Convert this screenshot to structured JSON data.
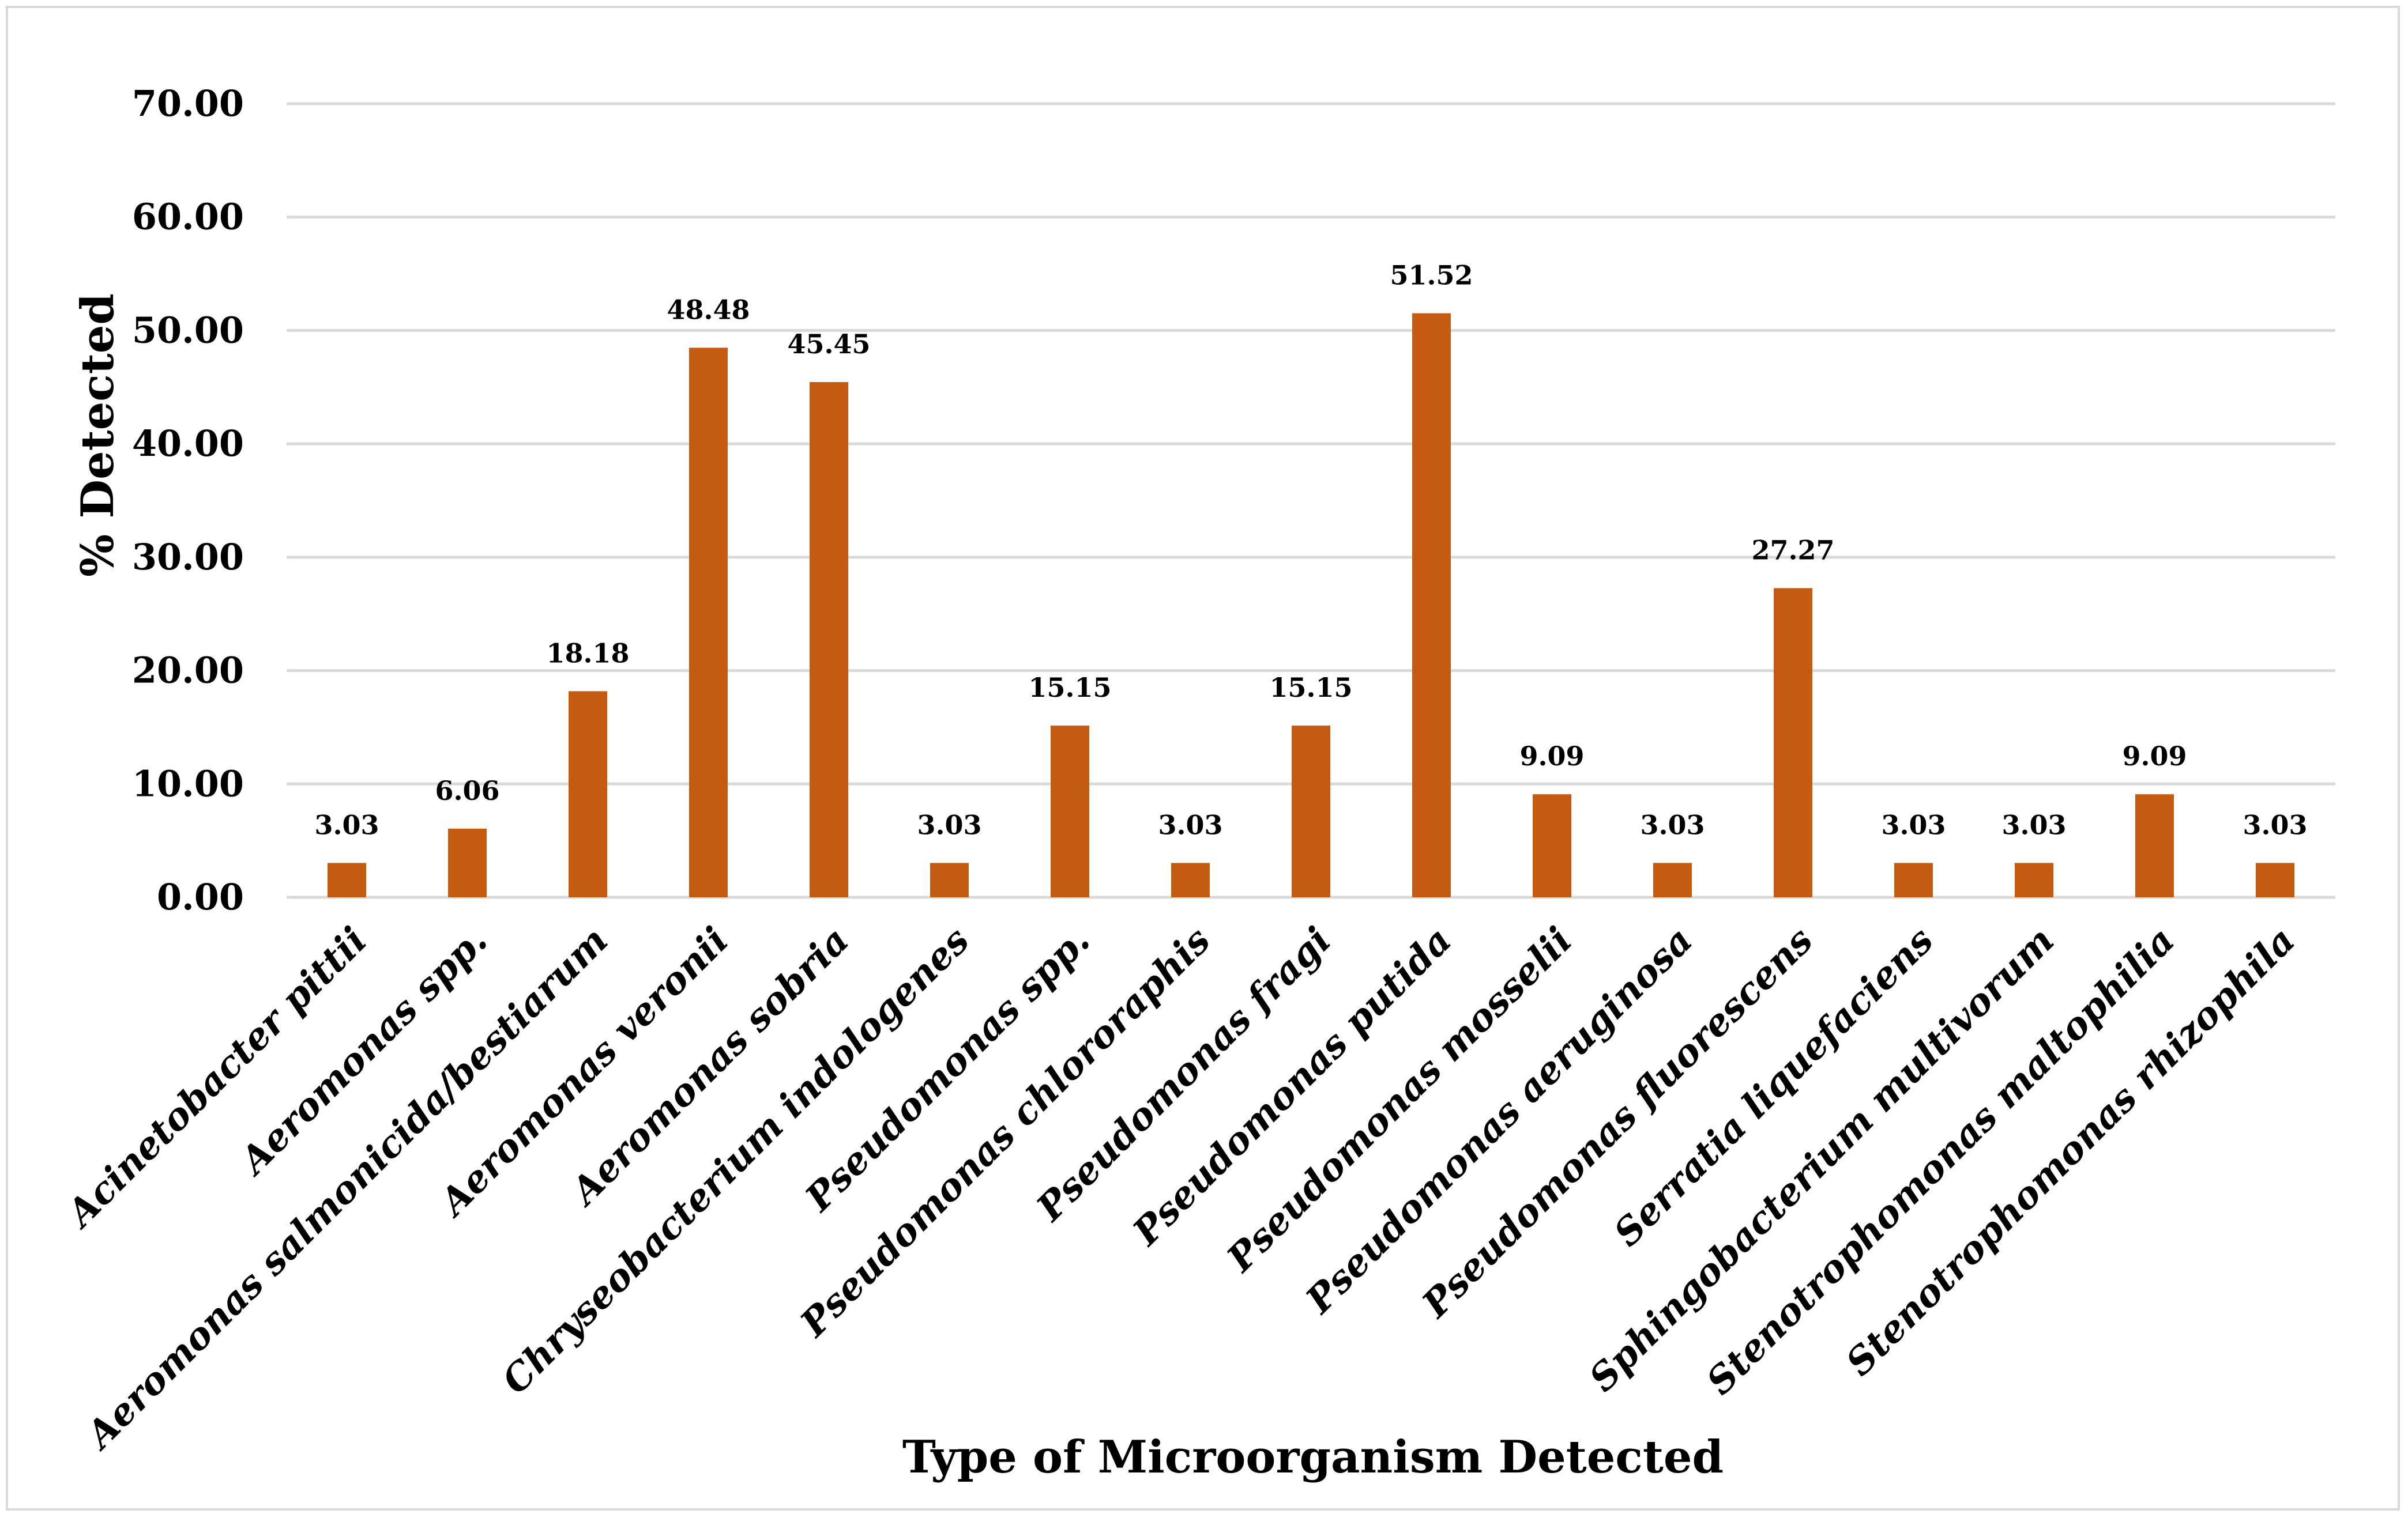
{
  "chart_data": {
    "type": "bar",
    "title": "",
    "xlabel": "Type of Microorganism Detected",
    "ylabel": "% Detected",
    "ylim": [
      0,
      70
    ],
    "yticks": [
      "0.00",
      "10.00",
      "20.00",
      "30.00",
      "40.00",
      "50.00",
      "60.00",
      "70.00"
    ],
    "grid": true,
    "bar_color": "#c55a11",
    "categories": [
      "Acinetobacter pittii",
      "Aeromonas spp.",
      "Aeromonas salmonicida/bestiarum",
      "Aeromonas veronii",
      "Aeromonas sobria",
      "Chryseobacterium indologenes",
      "Pseudomonas spp.",
      "Pseudomonas chlororaphis",
      "Pseudomonas fragi",
      "Pseudomonas putida",
      "Pseudomonas mosselii",
      "Pseudomonas aeruginosa",
      "Pseudomonas fluorescens",
      "Serratia liquefaciens",
      "Sphingobacterium multivorum",
      "Stenotrophomonas maltophilia",
      "Stenotrophomonas rhizophila"
    ],
    "values": [
      3.03,
      6.06,
      18.18,
      48.48,
      45.45,
      3.03,
      15.15,
      3.03,
      15.15,
      51.52,
      9.09,
      3.03,
      27.27,
      3.03,
      3.03,
      9.09,
      3.03
    ],
    "data_labels": [
      "3.03",
      "6.06",
      "18.18",
      "48.48",
      "45.45",
      "3.03",
      "15.15",
      "3.03",
      "15.15",
      "51.52",
      "9.09",
      "3.03",
      "27.27",
      "3.03",
      "3.03",
      "9.09",
      "3.03"
    ]
  }
}
